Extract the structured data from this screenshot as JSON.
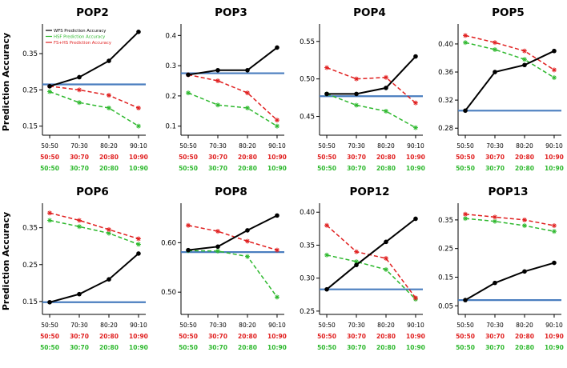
{
  "figure": {
    "ylabel": "Prediction Accuracy",
    "baseline_color": "#4a7ebf",
    "legend": [
      {
        "label": "WFS Prediction Accuracy",
        "color": "#000000"
      },
      {
        "label": "HSF Prediction Accuracy",
        "color": "#2db82d"
      },
      {
        "label": "FS+HS Prediction Accuracy",
        "color": "#e01f1f"
      }
    ],
    "x_label_rows": [
      {
        "color": "#000000",
        "labels": [
          "50:50",
          "70:30",
          "80:20",
          "90:10"
        ]
      },
      {
        "color": "#e01f1f",
        "labels": [
          "50:50",
          "30:70",
          "20:80",
          "10:90"
        ]
      },
      {
        "color": "#2db82d",
        "labels": [
          "50:50",
          "30:70",
          "20:80",
          "10:90"
        ]
      }
    ]
  },
  "chart_data": [
    {
      "type": "line",
      "title": "POP2",
      "categories": [
        "50:50",
        "70:30",
        "80:20",
        "90:10"
      ],
      "ylim": [
        0.125,
        0.425
      ],
      "ytick_values": [
        0.15,
        0.25,
        0.35
      ],
      "ytick_labels": [
        "0.15",
        "0.25",
        "0.35"
      ],
      "baseline": 0.265,
      "show_legend": true,
      "series": [
        {
          "name": "HSF Prediction Accuracy",
          "color": "#2db82d",
          "style": "dashed",
          "marker": "star",
          "values": [
            0.245,
            0.215,
            0.2,
            0.15
          ]
        },
        {
          "name": "FS+HS Prediction Accuracy",
          "color": "#e01f1f",
          "style": "dashed",
          "marker": "star",
          "values": [
            0.26,
            0.25,
            0.235,
            0.2
          ]
        },
        {
          "name": "WFS Prediction Accuracy",
          "color": "#000000",
          "style": "solid",
          "marker": "circle",
          "values": [
            0.26,
            0.285,
            0.33,
            0.41
          ]
        }
      ]
    },
    {
      "type": "line",
      "title": "POP3",
      "categories": [
        "50:50",
        "70:30",
        "80:20",
        "90:10"
      ],
      "ylim": [
        0.07,
        0.43
      ],
      "ytick_values": [
        0.1,
        0.2,
        0.3,
        0.4
      ],
      "ytick_labels": [
        "0.1",
        "0.2",
        "0.3",
        "0.4"
      ],
      "baseline": 0.275,
      "show_legend": false,
      "series": [
        {
          "name": "HSF Prediction Accuracy",
          "color": "#2db82d",
          "style": "dashed",
          "marker": "star",
          "values": [
            0.21,
            0.17,
            0.16,
            0.1
          ]
        },
        {
          "name": "FS+HS Prediction Accuracy",
          "color": "#e01f1f",
          "style": "dashed",
          "marker": "star",
          "values": [
            0.27,
            0.25,
            0.21,
            0.12
          ]
        },
        {
          "name": "WFS Prediction Accuracy",
          "color": "#000000",
          "style": "solid",
          "marker": "circle",
          "values": [
            0.27,
            0.285,
            0.285,
            0.36
          ]
        }
      ]
    },
    {
      "type": "line",
      "title": "POP4",
      "categories": [
        "50:50",
        "70:30",
        "80:20",
        "90:10"
      ],
      "ylim": [
        0.425,
        0.57
      ],
      "ytick_values": [
        0.45,
        0.5,
        0.55
      ],
      "ytick_labels": [
        "0.45",
        "0.50",
        "0.55"
      ],
      "baseline": 0.477,
      "show_legend": false,
      "series": [
        {
          "name": "HSF Prediction Accuracy",
          "color": "#2db82d",
          "style": "dashed",
          "marker": "star",
          "values": [
            0.48,
            0.465,
            0.457,
            0.435
          ]
        },
        {
          "name": "FS+HS Prediction Accuracy",
          "color": "#e01f1f",
          "style": "dashed",
          "marker": "star",
          "values": [
            0.515,
            0.5,
            0.502,
            0.468
          ]
        },
        {
          "name": "WFS Prediction Accuracy",
          "color": "#000000",
          "style": "solid",
          "marker": "circle",
          "values": [
            0.48,
            0.48,
            0.488,
            0.53
          ]
        }
      ]
    },
    {
      "type": "line",
      "title": "POP5",
      "categories": [
        "50:50",
        "70:30",
        "80:20",
        "90:10"
      ],
      "ylim": [
        0.27,
        0.425
      ],
      "ytick_values": [
        0.28,
        0.32,
        0.36,
        0.4
      ],
      "ytick_labels": [
        "0.28",
        "0.32",
        "0.36",
        "0.40"
      ],
      "baseline": 0.305,
      "show_legend": false,
      "series": [
        {
          "name": "HSF Prediction Accuracy",
          "color": "#2db82d",
          "style": "dashed",
          "marker": "star",
          "values": [
            0.402,
            0.392,
            0.378,
            0.352
          ]
        },
        {
          "name": "FS+HS Prediction Accuracy",
          "color": "#e01f1f",
          "style": "dashed",
          "marker": "star",
          "values": [
            0.412,
            0.402,
            0.39,
            0.363
          ]
        },
        {
          "name": "WFS Prediction Accuracy",
          "color": "#000000",
          "style": "solid",
          "marker": "circle",
          "values": [
            0.305,
            0.36,
            0.37,
            0.39
          ]
        }
      ]
    },
    {
      "type": "line",
      "title": "POP6",
      "categories": [
        "50:50",
        "70:30",
        "80:20",
        "90:10"
      ],
      "ylim": [
        0.115,
        0.41
      ],
      "ytick_values": [
        0.15,
        0.25,
        0.35
      ],
      "ytick_labels": [
        "0.15",
        "0.25",
        "0.35"
      ],
      "baseline": 0.148,
      "show_legend": false,
      "series": [
        {
          "name": "HSF Prediction Accuracy",
          "color": "#2db82d",
          "style": "dashed",
          "marker": "star",
          "values": [
            0.37,
            0.353,
            0.335,
            0.305
          ]
        },
        {
          "name": "FS+HS Prediction Accuracy",
          "color": "#e01f1f",
          "style": "dashed",
          "marker": "star",
          "values": [
            0.39,
            0.37,
            0.345,
            0.32
          ]
        },
        {
          "name": "WFS Prediction Accuracy",
          "color": "#000000",
          "style": "solid",
          "marker": "circle",
          "values": [
            0.148,
            0.17,
            0.21,
            0.28
          ]
        }
      ]
    },
    {
      "type": "line",
      "title": "POP8",
      "categories": [
        "50:50",
        "70:30",
        "80:20",
        "90:10"
      ],
      "ylim": [
        0.455,
        0.675
      ],
      "ytick_values": [
        0.5,
        0.6
      ],
      "ytick_labels": [
        "0.50",
        "0.60"
      ],
      "baseline": 0.581,
      "show_legend": false,
      "series": [
        {
          "name": "HSF Prediction Accuracy",
          "color": "#2db82d",
          "style": "dashed",
          "marker": "star",
          "values": [
            0.584,
            0.583,
            0.572,
            0.49
          ]
        },
        {
          "name": "FS+HS Prediction Accuracy",
          "color": "#e01f1f",
          "style": "dashed",
          "marker": "star",
          "values": [
            0.635,
            0.623,
            0.603,
            0.585
          ]
        },
        {
          "name": "WFS Prediction Accuracy",
          "color": "#000000",
          "style": "solid",
          "marker": "circle",
          "values": [
            0.585,
            0.592,
            0.625,
            0.655
          ]
        }
      ]
    },
    {
      "type": "line",
      "title": "POP12",
      "categories": [
        "50:50",
        "70:30",
        "80:20",
        "90:10"
      ],
      "ylim": [
        0.245,
        0.41
      ],
      "ytick_values": [
        0.25,
        0.3,
        0.35,
        0.4
      ],
      "ytick_labels": [
        "0.25",
        "0.30",
        "0.35",
        "0.40"
      ],
      "baseline": 0.283,
      "show_legend": false,
      "series": [
        {
          "name": "HSF Prediction Accuracy",
          "color": "#2db82d",
          "style": "dashed",
          "marker": "star",
          "values": [
            0.335,
            0.325,
            0.313,
            0.268
          ]
        },
        {
          "name": "FS+HS Prediction Accuracy",
          "color": "#e01f1f",
          "style": "dashed",
          "marker": "star",
          "values": [
            0.38,
            0.34,
            0.33,
            0.27
          ]
        },
        {
          "name": "WFS Prediction Accuracy",
          "color": "#000000",
          "style": "solid",
          "marker": "circle",
          "values": [
            0.283,
            0.32,
            0.355,
            0.39
          ]
        }
      ]
    },
    {
      "type": "line",
      "title": "POP13",
      "categories": [
        "50:50",
        "70:30",
        "80:20",
        "90:10"
      ],
      "ylim": [
        0.02,
        0.4
      ],
      "ytick_values": [
        0.05,
        0.15,
        0.25,
        0.35
      ],
      "ytick_labels": [
        "0.05",
        "0.15",
        "0.25",
        "0.35"
      ],
      "baseline": 0.07,
      "show_legend": false,
      "series": [
        {
          "name": "HSF Prediction Accuracy",
          "color": "#2db82d",
          "style": "dashed",
          "marker": "star",
          "values": [
            0.355,
            0.345,
            0.33,
            0.31
          ]
        },
        {
          "name": "FS+HS Prediction Accuracy",
          "color": "#e01f1f",
          "style": "dashed",
          "marker": "star",
          "values": [
            0.37,
            0.36,
            0.35,
            0.33
          ]
        },
        {
          "name": "WFS Prediction Accuracy",
          "color": "#000000",
          "style": "solid",
          "marker": "circle",
          "values": [
            0.07,
            0.13,
            0.17,
            0.2
          ]
        }
      ]
    }
  ]
}
